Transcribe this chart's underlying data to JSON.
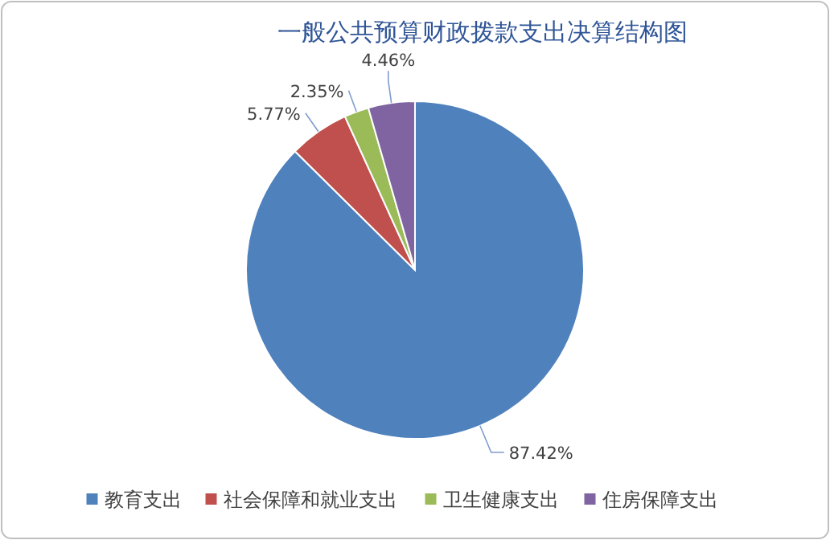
{
  "chart_data": {
    "type": "pie",
    "title": "一般公共预算财政拨款支出决算结构图",
    "categories": [
      "教育支出",
      "社会保障和就业支出",
      "卫生健康支出",
      "住房保障支出"
    ],
    "values": [
      87.42,
      5.77,
      2.35,
      4.46
    ],
    "colors": [
      "#4f81bd",
      "#c0504d",
      "#9bbb59",
      "#8064a2"
    ],
    "value_labels": [
      "87.42%",
      "5.77%",
      "2.35%",
      "4.46%"
    ],
    "legend": "bottom"
  }
}
